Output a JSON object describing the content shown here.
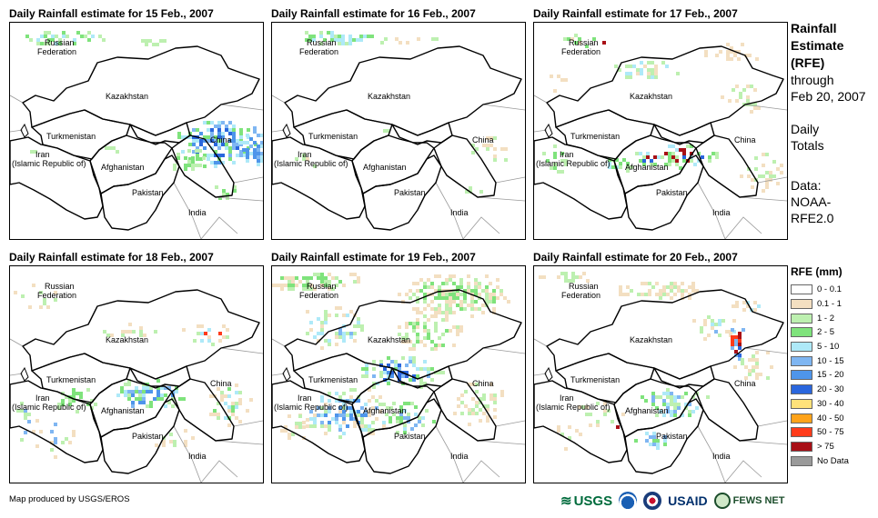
{
  "panels": [
    {
      "title": "Daily Rainfall estimate for 15 Feb., 2007",
      "pattern": "north-east"
    },
    {
      "title": "Daily Rainfall estimate for 16 Feb., 2007",
      "pattern": "north-light"
    },
    {
      "title": "Daily Rainfall estimate for 17 Feb., 2007",
      "pattern": "scattered"
    },
    {
      "title": "Daily Rainfall estimate for 18 Feb., 2007",
      "pattern": "central"
    },
    {
      "title": "Daily Rainfall estimate for 19 Feb., 2007",
      "pattern": "widespread"
    },
    {
      "title": "Daily Rainfall estimate for 20 Feb., 2007",
      "pattern": "east-storm"
    }
  ],
  "map_labels": {
    "russia_1": "Russian",
    "russia_2": "Federation",
    "kazakhstan": "Kazakhstan",
    "turkmenistan": "Turkmenistan",
    "iran_1": "Iran",
    "iran_2": "(Islamic Republic of)",
    "afghanistan": "Afghanistan",
    "pakistan": "Pakistan",
    "china": "China",
    "india": "India"
  },
  "sidebar": {
    "title_1": "Rainfall",
    "title_2": "Estimate",
    "title_3": "(RFE)",
    "through": "through",
    "date": "Feb 20, 2007",
    "daily_1": "Daily",
    "daily_2": "Totals",
    "data_1": "Data:",
    "data_2": "NOAA-",
    "data_3": "RFE2.0"
  },
  "legend": {
    "title": "RFE (mm)",
    "items": [
      {
        "label": "0 - 0.1",
        "color": "#ffffff"
      },
      {
        "label": "0.1 - 1",
        "color": "#f3dfc1"
      },
      {
        "label": "1 - 2",
        "color": "#bdf0b0"
      },
      {
        "label": "2 - 5",
        "color": "#7fe37c"
      },
      {
        "label": "5 - 10",
        "color": "#aee9f8"
      },
      {
        "label": "10 - 15",
        "color": "#7fb6f2"
      },
      {
        "label": "15 - 20",
        "color": "#4e95ea"
      },
      {
        "label": "20 - 30",
        "color": "#2a66dd"
      },
      {
        "label": "30 - 40",
        "color": "#ffe27a"
      },
      {
        "label": "40 - 50",
        "color": "#ffa31a"
      },
      {
        "label": "50 - 75",
        "color": "#ff3b1a"
      },
      {
        "label": "> 75",
        "color": "#a80f16"
      },
      {
        "label": "No Data",
        "color": "#9a9a9a"
      }
    ]
  },
  "footer": {
    "credit": "Map produced by USGS/EROS",
    "logos": {
      "usgs": "USGS",
      "usaid": "USAID",
      "fews": "FEWS NET"
    }
  }
}
